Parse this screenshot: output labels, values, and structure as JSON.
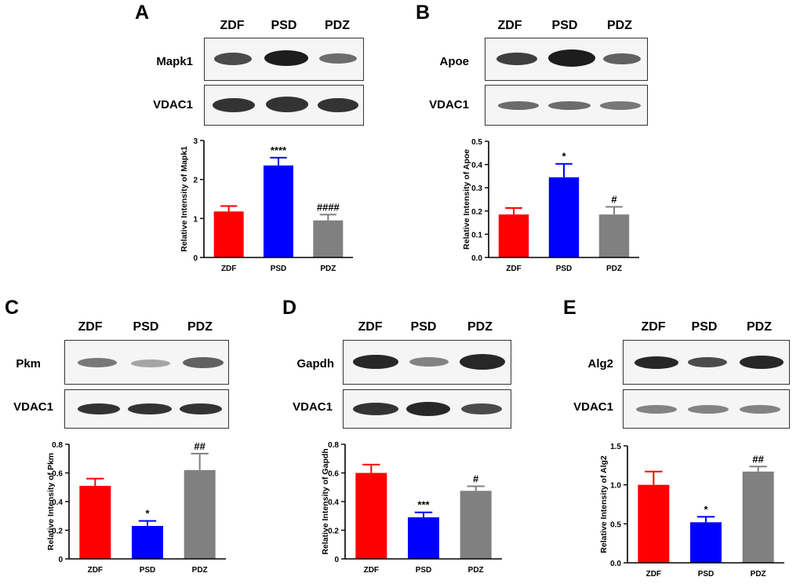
{
  "colors": {
    "zdf": "#ff0000",
    "psd": "#0000ff",
    "pdz": "#808080"
  },
  "panels": {
    "A": {
      "letter": "A",
      "lanes": [
        "ZDF",
        "PSD",
        "PDZ"
      ],
      "blots": [
        "Mapk1",
        "VDAC1"
      ]
    },
    "B": {
      "letter": "B",
      "lanes": [
        "ZDF",
        "PSD",
        "PDZ"
      ],
      "blots": [
        "Apoe",
        "VDAC1"
      ]
    },
    "C": {
      "letter": "C",
      "lanes": [
        "ZDF",
        "PSD",
        "PDZ"
      ],
      "blots": [
        "Pkm",
        "VDAC1"
      ]
    },
    "D": {
      "letter": "D",
      "lanes": [
        "ZDF",
        "PSD",
        "PDZ"
      ],
      "blots": [
        "Gapdh",
        "VDAC1"
      ]
    },
    "E": {
      "letter": "E",
      "lanes": [
        "ZDF",
        "PSD",
        "PDZ"
      ],
      "blots": [
        "Alg2",
        "VDAC1"
      ]
    }
  },
  "chart_data": [
    {
      "id": "A",
      "type": "bar",
      "categories": [
        "ZDF",
        "PSD",
        "PDZ"
      ],
      "values": [
        1.18,
        2.36,
        0.95
      ],
      "errors": [
        0.14,
        0.2,
        0.15
      ],
      "annotations": [
        "",
        "****",
        "####"
      ],
      "ylabel": "Relative Intensity of Mapk1",
      "ylim": [
        0,
        3
      ],
      "yticks": [
        0,
        1,
        2,
        3
      ],
      "ytick_labels": [
        "0",
        "1",
        "2",
        "3"
      ]
    },
    {
      "id": "B",
      "type": "bar",
      "categories": [
        "ZDF",
        "PSD",
        "PDZ"
      ],
      "values": [
        0.185,
        0.345,
        0.185
      ],
      "errors": [
        0.028,
        0.058,
        0.033
      ],
      "annotations": [
        "",
        "*",
        "#"
      ],
      "ylabel": "Relative Intensity of Apoe",
      "ylim": [
        0,
        0.5
      ],
      "yticks": [
        0,
        0.1,
        0.2,
        0.3,
        0.4,
        0.5
      ],
      "ytick_labels": [
        "0.0",
        "0.1",
        "0.2",
        "0.3",
        "0.4",
        "0.5"
      ]
    },
    {
      "id": "C",
      "type": "bar",
      "categories": [
        "ZDF",
        "PSD",
        "PDZ"
      ],
      "values": [
        0.51,
        0.23,
        0.62
      ],
      "errors": [
        0.05,
        0.035,
        0.115
      ],
      "annotations": [
        "",
        "*",
        "##"
      ],
      "ylabel": "Relative Intensity of Pkm",
      "ylim": [
        0,
        0.8
      ],
      "yticks": [
        0,
        0.2,
        0.4,
        0.6,
        0.8
      ],
      "ytick_labels": [
        "0",
        "0.2",
        "0.4",
        "0.6",
        "0.8"
      ]
    },
    {
      "id": "D",
      "type": "bar",
      "categories": [
        "ZDF",
        "PSD",
        "PDZ"
      ],
      "values": [
        0.6,
        0.29,
        0.475
      ],
      "errors": [
        0.058,
        0.035,
        0.032
      ],
      "annotations": [
        "",
        "***",
        "#"
      ],
      "ylabel": "Relative Intensity of Gapdh",
      "ylim": [
        0,
        0.8
      ],
      "yticks": [
        0,
        0.2,
        0.4,
        0.6,
        0.8
      ],
      "ytick_labels": [
        "0",
        "0.2",
        "0.4",
        "0.6",
        "0.8"
      ]
    },
    {
      "id": "E",
      "type": "bar",
      "categories": [
        "ZDF",
        "PSD",
        "PDZ"
      ],
      "values": [
        1.0,
        0.52,
        1.17
      ],
      "errors": [
        0.17,
        0.07,
        0.065
      ],
      "annotations": [
        "",
        "*",
        "##"
      ],
      "ylabel": "Relative Intensity of Alg2",
      "ylim": [
        0,
        1.5
      ],
      "yticks": [
        0,
        0.5,
        1.0,
        1.5
      ],
      "ytick_labels": [
        "0.0",
        "0.5",
        "1.0",
        "1.5"
      ]
    }
  ]
}
